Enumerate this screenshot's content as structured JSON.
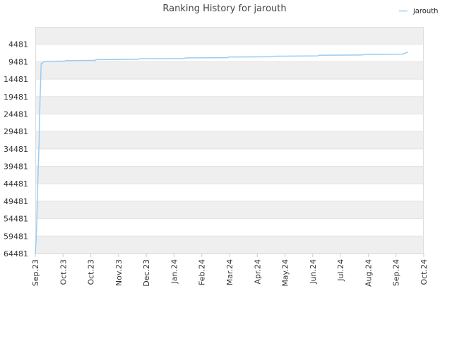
{
  "chart_data": {
    "type": "line",
    "title": "Ranking History for jarouth",
    "xlabel": "",
    "ylabel": "",
    "y_inverted": true,
    "ylim": [
      64481,
      -519
    ],
    "y_ticks": [
      4481,
      9481,
      14481,
      19481,
      24481,
      29481,
      34481,
      39481,
      44481,
      49481,
      54481,
      59481,
      64481
    ],
    "x_ticks": [
      "Sep.23",
      "Oct.23",
      "Oct.23",
      "Nov.23",
      "Dec.23",
      "Jan.24",
      "Feb.24",
      "Mar.24",
      "Apr.24",
      "May.24",
      "Jun.24",
      "Jul.24",
      "Aug.24",
      "Sep.24",
      "Oct.24"
    ],
    "xlim": [
      "2023-09-01",
      "2024-10-01"
    ],
    "grid": true,
    "legend": "top-right",
    "series": [
      {
        "name": "jarouth",
        "color": "#99ccf2",
        "points": [
          [
            "2023-09-01",
            64481
          ],
          [
            "2023-09-02",
            59481
          ],
          [
            "2023-09-03",
            50500
          ],
          [
            "2023-09-03",
            49500
          ],
          [
            "2023-09-04",
            39500
          ],
          [
            "2023-09-05",
            31500
          ],
          [
            "2023-09-05",
            28500
          ],
          [
            "2023-09-06",
            19000
          ],
          [
            "2023-09-07",
            10000
          ],
          [
            "2023-09-09",
            9700
          ],
          [
            "2023-09-10",
            9450
          ],
          [
            "2023-09-15",
            9400
          ],
          [
            "2023-10-01",
            9300
          ],
          [
            "2023-10-02",
            9150
          ],
          [
            "2023-11-01",
            9100
          ],
          [
            "2023-11-02",
            8900
          ],
          [
            "2023-12-15",
            8800
          ],
          [
            "2023-12-16",
            8650
          ],
          [
            "2024-01-31",
            8550
          ],
          [
            "2024-02-01",
            8400
          ],
          [
            "2024-03-15",
            8300
          ],
          [
            "2024-03-16",
            8150
          ],
          [
            "2024-04-30",
            8050
          ],
          [
            "2024-05-01",
            7900
          ],
          [
            "2024-06-15",
            7800
          ],
          [
            "2024-06-16",
            7650
          ],
          [
            "2024-07-31",
            7550
          ],
          [
            "2024-08-01",
            7400
          ],
          [
            "2024-09-10",
            7300
          ],
          [
            "2024-09-14",
            6800
          ],
          [
            "2024-09-15",
            6600
          ]
        ]
      }
    ]
  }
}
